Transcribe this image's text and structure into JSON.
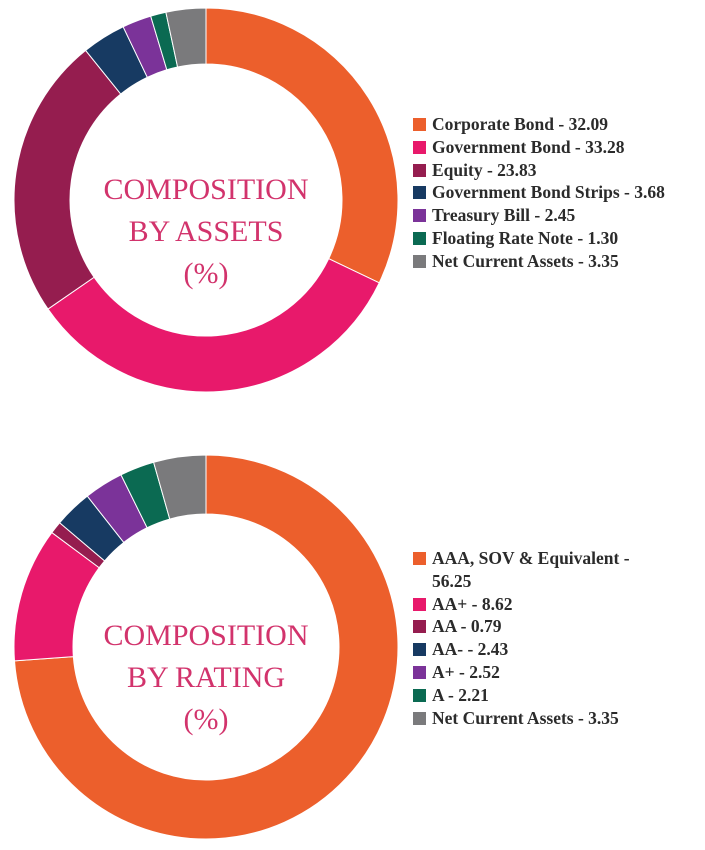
{
  "colors": {
    "orange": "#ec5f2c",
    "pink": "#e8196b",
    "maroon": "#951d4f",
    "navy": "#173a62",
    "purple": "#7b3399",
    "teal": "#0b6a52",
    "grey": "#7a7a7c",
    "title": "#d2336c"
  },
  "chart_data": [
    {
      "type": "pie",
      "variant": "donut",
      "title_lines": [
        "COMPOSITION",
        "BY ASSETS",
        "(%)"
      ],
      "legend_position": "right",
      "slices": [
        {
          "label": "Corporate Bond - 32.09",
          "name": "Corporate Bond",
          "value": 32.09,
          "color": "#ec5f2c"
        },
        {
          "label": "Government Bond - 33.28",
          "name": "Government Bond",
          "value": 33.28,
          "color": "#e8196b"
        },
        {
          "label": "Equity - 23.83",
          "name": "Equity",
          "value": 23.83,
          "color": "#951d4f"
        },
        {
          "label": "Government Bond Strips - 3.68",
          "name": "Government Bond Strips",
          "value": 3.68,
          "color": "#173a62"
        },
        {
          "label": "Treasury Bill - 2.45",
          "name": "Treasury Bill",
          "value": 2.45,
          "color": "#7b3399"
        },
        {
          "label": "Floating Rate Note - 1.30",
          "name": "Floating Rate Note",
          "value": 1.3,
          "color": "#0b6a52"
        },
        {
          "label": "Net Current Assets - 3.35",
          "name": "Net Current Assets",
          "value": 3.35,
          "color": "#7a7a7c"
        }
      ]
    },
    {
      "type": "pie",
      "variant": "donut",
      "title_lines": [
        "COMPOSITION",
        "BY RATING",
        "(%)"
      ],
      "legend_position": "right",
      "slices": [
        {
          "label": "AAA, SOV & Equivalent -",
          "label_line2": "56.25",
          "name": "AAA, SOV & Equivalent",
          "value": 56.25,
          "color": "#ec5f2c"
        },
        {
          "label": "AA+ - 8.62",
          "name": "AA+",
          "value": 8.62,
          "color": "#e8196b"
        },
        {
          "label": "AA - 0.79",
          "name": "AA",
          "value": 0.79,
          "color": "#951d4f"
        },
        {
          "label": "AA- - 2.43",
          "name": "AA-",
          "value": 2.43,
          "color": "#173a62"
        },
        {
          "label": "A+ - 2.52",
          "name": "A+",
          "value": 2.52,
          "color": "#7b3399"
        },
        {
          "label": "A - 2.21",
          "name": "A",
          "value": 2.21,
          "color": "#0b6a52"
        },
        {
          "label": "Net Current Assets - 3.35",
          "name": "Net Current Assets",
          "value": 3.35,
          "color": "#7a7a7c"
        }
      ]
    }
  ]
}
